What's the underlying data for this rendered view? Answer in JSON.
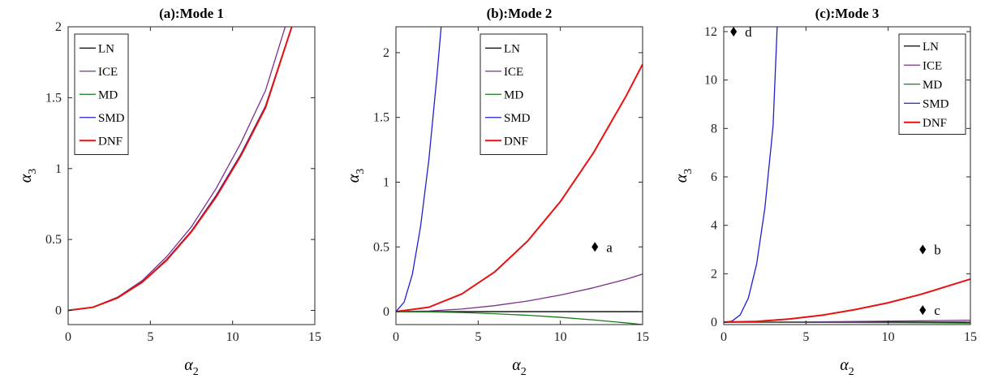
{
  "chart_data": [
    {
      "type": "line",
      "title": "(a):Mode 1",
      "xlabel": "α",
      "xlabel_sub": "2",
      "ylabel": "α",
      "ylabel_sub": "3",
      "xlim": [
        0,
        15
      ],
      "ylim": [
        -0.1,
        2
      ],
      "xticks": [
        0,
        5,
        10,
        15
      ],
      "yticks": [
        0,
        0.5,
        1,
        1.5,
        2
      ],
      "xtick_labels": [
        "0",
        "5",
        "10",
        "15"
      ],
      "ytick_labels": [
        "0",
        "0.5",
        "1",
        "1.5",
        "2"
      ],
      "grid": false,
      "legend_position": "top-left",
      "series": [
        {
          "name": "LN",
          "color": "#000000",
          "x": [
            0,
            1.5,
            3,
            4.5,
            6,
            7.5,
            9,
            10.5,
            12,
            13.6
          ],
          "y": [
            0,
            0.022,
            0.09,
            0.2,
            0.36,
            0.56,
            0.81,
            1.1,
            1.44,
            2.0
          ]
        },
        {
          "name": "ICE",
          "color": "#7e2f8e",
          "x": [
            0,
            1.5,
            3,
            4.5,
            6,
            7.5,
            9,
            10.5,
            12,
            13.2
          ],
          "y": [
            0,
            0.023,
            0.093,
            0.21,
            0.38,
            0.59,
            0.86,
            1.18,
            1.55,
            2.0
          ]
        },
        {
          "name": "MD",
          "color": "#1a7a1a",
          "x": [
            0,
            1.5,
            3,
            4.5,
            6,
            7.5,
            9,
            10.5,
            12,
            13.6
          ],
          "y": [
            0,
            0.022,
            0.09,
            0.2,
            0.36,
            0.56,
            0.81,
            1.1,
            1.44,
            2.0
          ]
        },
        {
          "name": "SMD",
          "color": "#1f1fd1",
          "x": [
            0,
            1.5,
            3,
            4.5,
            6,
            7.5,
            9,
            10.5,
            12,
            13.6
          ],
          "y": [
            0,
            0.022,
            0.09,
            0.2,
            0.36,
            0.56,
            0.81,
            1.1,
            1.44,
            2.0
          ]
        },
        {
          "name": "DNF",
          "color": "#e81010",
          "x": [
            0,
            1.5,
            3,
            4.5,
            6,
            7.5,
            9,
            10.5,
            12,
            13.6
          ],
          "y": [
            0,
            0.022,
            0.088,
            0.198,
            0.355,
            0.555,
            0.8,
            1.09,
            1.43,
            2.0
          ]
        }
      ],
      "annotations": []
    },
    {
      "type": "line",
      "title": "(b):Mode 2",
      "xlabel": "α",
      "xlabel_sub": "2",
      "ylabel": "α",
      "ylabel_sub": "3",
      "xlim": [
        0,
        15
      ],
      "ylim": [
        -0.1,
        2.2
      ],
      "xticks": [
        0,
        5,
        10,
        15
      ],
      "yticks": [
        0,
        0.5,
        1,
        1.5,
        2
      ],
      "xtick_labels": [
        "0",
        "5",
        "10",
        "15"
      ],
      "ytick_labels": [
        "0",
        "0.5",
        "1",
        "1.5",
        "2"
      ],
      "grid": false,
      "legend_position": "top-center",
      "series": [
        {
          "name": "LN",
          "color": "#000000",
          "x": [
            0,
            15
          ],
          "y": [
            0,
            0
          ]
        },
        {
          "name": "ICE",
          "color": "#7e2f8e",
          "x": [
            0,
            2,
            4,
            6,
            8,
            10,
            12,
            14,
            15
          ],
          "y": [
            0,
            0.005,
            0.02,
            0.046,
            0.082,
            0.128,
            0.184,
            0.25,
            0.29
          ]
        },
        {
          "name": "MD",
          "color": "#1a7a1a",
          "x": [
            0,
            2,
            4,
            6,
            8,
            10,
            12,
            14,
            15
          ],
          "y": [
            0,
            -0.002,
            -0.007,
            -0.016,
            -0.028,
            -0.044,
            -0.064,
            -0.087,
            -0.1
          ]
        },
        {
          "name": "SMD",
          "color": "#1f1fd1",
          "x": [
            0,
            0.5,
            1,
            1.5,
            2,
            2.5,
            2.75
          ],
          "y": [
            0,
            0.074,
            0.29,
            0.66,
            1.17,
            1.83,
            2.2
          ]
        },
        {
          "name": "DNF",
          "color": "#e81010",
          "x": [
            0,
            2,
            4,
            6,
            8,
            10,
            12,
            14,
            15
          ],
          "y": [
            0,
            0.034,
            0.136,
            0.306,
            0.544,
            0.85,
            1.224,
            1.666,
            1.91
          ]
        }
      ],
      "annotations": [
        {
          "label": "a",
          "x": 12.1,
          "y": 0.5
        }
      ]
    },
    {
      "type": "line",
      "title": "(c):Mode 3",
      "xlabel": "α",
      "xlabel_sub": "2",
      "ylabel": "α",
      "ylabel_sub": "3",
      "xlim": [
        0,
        15
      ],
      "ylim": [
        -0.1,
        12.2
      ],
      "xticks": [
        0,
        5,
        10,
        15
      ],
      "yticks": [
        0,
        2,
        4,
        6,
        8,
        10,
        12
      ],
      "xtick_labels": [
        "0",
        "5",
        "10",
        "15"
      ],
      "ytick_labels": [
        "0",
        "2",
        "4",
        "6",
        "8",
        "10",
        "12"
      ],
      "grid": false,
      "legend_position": "top-right",
      "series": [
        {
          "name": "LN",
          "color": "#000000",
          "x": [
            0,
            15
          ],
          "y": [
            0,
            0
          ]
        },
        {
          "name": "ICE",
          "color": "#7e2f8e",
          "x": [
            0,
            5,
            10,
            15
          ],
          "y": [
            0,
            0.01,
            0.04,
            0.08
          ]
        },
        {
          "name": "MD",
          "color": "#1a7a1a",
          "x": [
            0,
            5,
            10,
            15
          ],
          "y": [
            0,
            -0.01,
            -0.02,
            -0.04
          ]
        },
        {
          "name": "SMD",
          "color": "#1f1fd1",
          "x": [
            0,
            0.5,
            1,
            1.5,
            2,
            2.5,
            3,
            3.25
          ],
          "y": [
            0,
            0.04,
            0.3,
            1.0,
            2.4,
            4.7,
            8.1,
            12.2
          ]
        },
        {
          "name": "DNF",
          "color": "#e81010",
          "x": [
            0,
            2,
            4,
            6,
            8,
            10,
            12,
            14,
            15
          ],
          "y": [
            0,
            0.03,
            0.13,
            0.29,
            0.52,
            0.8,
            1.15,
            1.57,
            1.78
          ]
        }
      ],
      "annotations": [
        {
          "label": "d",
          "x": 0.6,
          "y": 12
        },
        {
          "label": "b",
          "x": 12.1,
          "y": 3
        },
        {
          "label": "c",
          "x": 12.1,
          "y": 0.5
        }
      ]
    }
  ]
}
